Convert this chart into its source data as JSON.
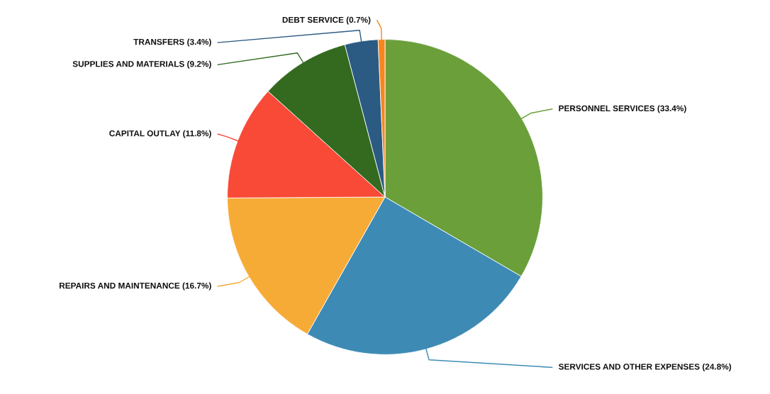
{
  "chart_data": {
    "type": "pie",
    "categories": [
      "PERSONNEL SERVICES (33.4%)",
      "SERVICES AND OTHER EXPENSES (24.8%)",
      "REPAIRS AND MAINTENANCE (16.7%)",
      "CAPITAL OUTLAY (11.8%)",
      "SUPPLIES AND MATERIALS (9.2%)",
      "TRANSFERS (3.4%)",
      "DEBT SERVICE (0.7%)"
    ],
    "values": [
      33.4,
      24.8,
      16.7,
      11.8,
      9.2,
      3.4,
      0.7
    ],
    "colors": [
      "#6a9f3a",
      "#3d8bb5",
      "#f7ab37",
      "#f84a37",
      "#336a20",
      "#2b5a82",
      "#f7861f"
    ]
  }
}
